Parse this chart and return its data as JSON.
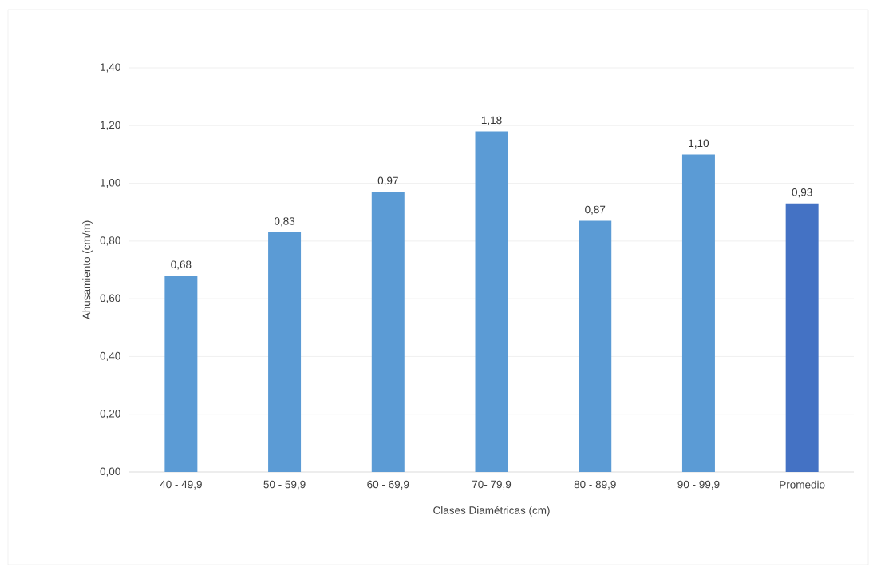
{
  "chart_data": {
    "type": "bar",
    "xlabel": "Clases Diamétricas (cm)",
    "ylabel": "Ahusamiento (cm/m)",
    "categories": [
      "40 - 49,9",
      "50 - 59,9",
      "60 - 69,9",
      "70- 79,9",
      "80 - 89,9",
      "90 - 99,9",
      "Promedio"
    ],
    "values": [
      0.68,
      0.83,
      0.97,
      1.18,
      0.87,
      1.1,
      0.93
    ],
    "value_labels": [
      "0,68",
      "0,83",
      "0,97",
      "1,18",
      "0,87",
      "1,10",
      "0,93"
    ],
    "colors": [
      "#5b9bd5",
      "#5b9bd5",
      "#5b9bd5",
      "#5b9bd5",
      "#5b9bd5",
      "#5b9bd5",
      "#4472c4"
    ],
    "ylim": [
      0,
      1.4
    ],
    "yticks": [
      {
        "value": 0,
        "label": "0,00"
      },
      {
        "value": 0.2,
        "label": "0,20"
      },
      {
        "value": 0.4,
        "label": "0,40"
      },
      {
        "value": 0.6,
        "label": "0,60"
      },
      {
        "value": 0.8,
        "label": "0,80"
      },
      {
        "value": 1.0,
        "label": "1,00"
      },
      {
        "value": 1.2,
        "label": "1,20"
      },
      {
        "value": 1.4,
        "label": "1,40"
      }
    ],
    "grid": "y"
  }
}
